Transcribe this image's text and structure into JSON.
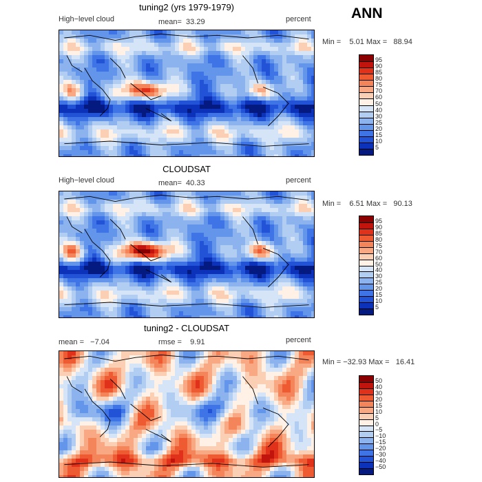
{
  "season": "ANN",
  "panels": [
    {
      "title": "tuning2 (yrs 1979-1979)",
      "left_label": "High−level cloud",
      "center_label": "mean=  33.29",
      "units": "percent",
      "minmax": "Min =    5.01 Max =   88.94",
      "colorbar_ticks": [
        "95",
        "90",
        "85",
        "80",
        "75",
        "70",
        "60",
        "50",
        "40",
        "30",
        "25",
        "20",
        "15",
        "10",
        "5"
      ],
      "colors": [
        "#8b0000",
        "#c0140c",
        "#e0321a",
        "#ee5a32",
        "#f4845a",
        "#f8a882",
        "#fbcfb3",
        "#fff1e6",
        "#d5e4f7",
        "#b1cdf2",
        "#8cb3ee",
        "#6395ea",
        "#3e74e6",
        "#2252d6",
        "#0b32b8",
        "#051a80"
      ]
    },
    {
      "title": "CLOUDSAT",
      "left_label": "High−level cloud",
      "center_label": "mean=  40.33",
      "units": "percent",
      "minmax": "Min =    6.51 Max =   90.13",
      "colorbar_ticks": [
        "95",
        "90",
        "85",
        "80",
        "75",
        "70",
        "60",
        "50",
        "40",
        "30",
        "25",
        "20",
        "15",
        "10",
        "5"
      ],
      "colors": [
        "#8b0000",
        "#c0140c",
        "#e0321a",
        "#ee5a32",
        "#f4845a",
        "#f8a882",
        "#fbcfb3",
        "#fff1e6",
        "#d5e4f7",
        "#b1cdf2",
        "#8cb3ee",
        "#6395ea",
        "#3e74e6",
        "#2252d6",
        "#0b32b8",
        "#051a80"
      ]
    },
    {
      "title": "tuning2 - CLOUDSAT",
      "left_label": "mean =   −7.04",
      "center_label": "rmse =    9.91",
      "units": "percent",
      "minmax": "Min = −32.93 Max =   16.41",
      "colorbar_ticks": [
        "50",
        "40",
        "30",
        "20",
        "15",
        "10",
        "5",
        "0",
        "−5",
        "−10",
        "−15",
        "−20",
        "−30",
        "−40",
        "−50"
      ],
      "colors": [
        "#8b0000",
        "#c0140c",
        "#e0321a",
        "#ee5a32",
        "#f4845a",
        "#f8a882",
        "#fbcfb3",
        "#fff1e6",
        "#d5e4f7",
        "#b1cdf2",
        "#8cb3ee",
        "#6395ea",
        "#3e74e6",
        "#2252d6",
        "#0b32b8",
        "#051a80"
      ]
    }
  ],
  "chart_data": [
    {
      "type": "heatmap",
      "title": "tuning2 (yrs 1979-1979)",
      "subtitle": "High−level cloud",
      "units": "percent",
      "mean": 33.29,
      "min": 5.01,
      "max": 88.94,
      "levels": [
        5,
        10,
        15,
        20,
        25,
        30,
        40,
        50,
        60,
        70,
        75,
        80,
        85,
        90,
        95
      ]
    },
    {
      "type": "heatmap",
      "title": "CLOUDSAT",
      "subtitle": "High−level cloud",
      "units": "percent",
      "mean": 40.33,
      "min": 6.51,
      "max": 90.13,
      "levels": [
        5,
        10,
        15,
        20,
        25,
        30,
        40,
        50,
        60,
        70,
        75,
        80,
        85,
        90,
        95
      ]
    },
    {
      "type": "heatmap",
      "title": "tuning2 - CLOUDSAT",
      "units": "percent",
      "mean": -7.04,
      "rmse": 9.91,
      "min": -32.93,
      "max": 16.41,
      "levels": [
        -50,
        -40,
        -30,
        -20,
        -15,
        -10,
        -5,
        0,
        5,
        10,
        15,
        20,
        30,
        40,
        50
      ]
    }
  ]
}
